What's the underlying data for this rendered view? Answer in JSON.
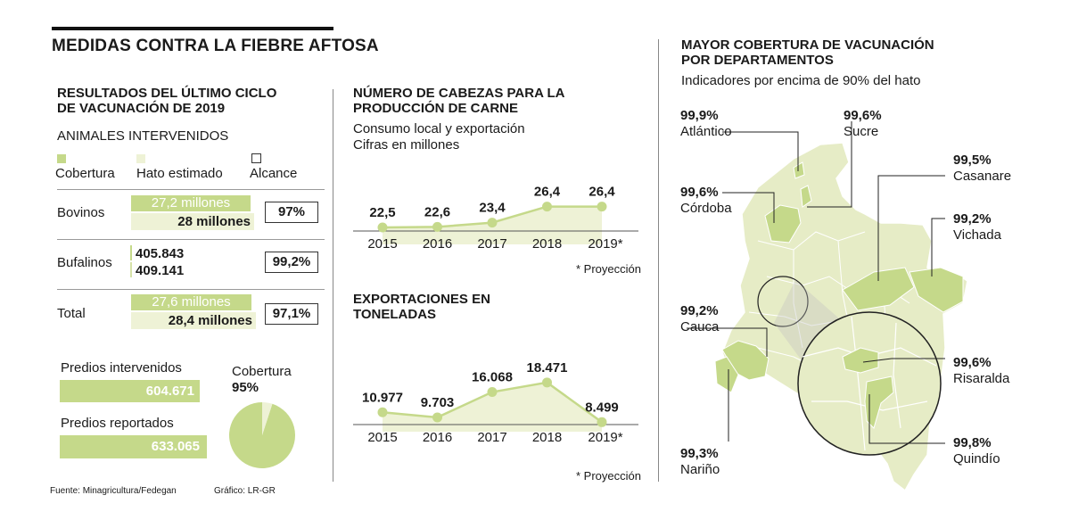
{
  "header": {
    "title": "MEDIDAS CONTRA LA FIEBRE AFTOSA"
  },
  "colors": {
    "cobertura": "#c5d98a",
    "hato": "#eef2d6",
    "line": "#c5d98a",
    "area": "#eef2d6",
    "map_fill": "#e6ecc6",
    "map_highlight": "#c5d98a"
  },
  "left": {
    "title": "RESULTADOS DEL ÚLTIMO CICLO DE VACUNACIÓN DE 2019",
    "subtitle": "ANIMALES INTERVENIDOS",
    "legend": {
      "cobertura": "Cobertura",
      "hato": "Hato estimado",
      "alcance": "Alcance"
    },
    "rows": [
      {
        "label": "Bovinos",
        "cobertura": "27,2 millones",
        "hato": "28 millones",
        "alcance": "97%"
      },
      {
        "label": "Bufalinos",
        "cobertura": "405.843",
        "hato": "409.141",
        "alcance": "99,2%"
      },
      {
        "label": "Total",
        "cobertura": "27,6 millones",
        "hato": "28,4 millones",
        "alcance": "97,1%"
      }
    ],
    "predios_intervenidos_label": "Predios intervenidos",
    "predios_intervenidos_value": "604.671",
    "predios_reportados_label": "Predios reportados",
    "predios_reportados_value": "633.065",
    "cobertura_label": "Cobertura",
    "cobertura_value": "95%"
  },
  "footer": {
    "fuente": "Fuente: Minagricultura/Fedegan",
    "grafico": "Gráfico: LR-GR"
  },
  "chart_data": [
    {
      "type": "area",
      "title": "NÚMERO DE CABEZAS PARA LA PRODUCCIÓN DE CARNE",
      "subtitle": "Consumo local y exportación Cifras en millones",
      "categories": [
        "2015",
        "2016",
        "2017",
        "2018",
        "2019*"
      ],
      "values": [
        22.5,
        22.6,
        23.4,
        26.4,
        26.4
      ],
      "labels": [
        "22,5",
        "22,6",
        "23,4",
        "26,4",
        "26,4"
      ],
      "note": "* Proyección",
      "ylim": [
        20,
        30
      ]
    },
    {
      "type": "area",
      "title": "EXPORTACIONES EN TONELADAS",
      "categories": [
        "2015",
        "2016",
        "2017",
        "2018",
        "2019*"
      ],
      "values": [
        10977,
        9703,
        16068,
        18471,
        8499
      ],
      "labels": [
        "10.977",
        "9.703",
        "16.068",
        "18.471",
        "8.499"
      ],
      "note": "* Proyección",
      "ylim": [
        7000,
        20000
      ]
    },
    {
      "type": "pie",
      "title": "Cobertura",
      "values": [
        95,
        5
      ],
      "labels": [
        "95%",
        ""
      ]
    }
  ],
  "map": {
    "title": "MAYOR COBERTURA DE VACUNACIÓN POR DEPARTAMENTOS",
    "subtitle": "Indicadores por encima de 90% del hato",
    "departments": [
      {
        "name": "Atlántico",
        "value": "99,9%"
      },
      {
        "name": "Sucre",
        "value": "99,6%"
      },
      {
        "name": "Córdoba",
        "value": "99,6%"
      },
      {
        "name": "Casanare",
        "value": "99,5%"
      },
      {
        "name": "Vichada",
        "value": "99,2%"
      },
      {
        "name": "Cauca",
        "value": "99,2%"
      },
      {
        "name": "Risaralda",
        "value": "99,6%"
      },
      {
        "name": "Nariño",
        "value": "99,3%"
      },
      {
        "name": "Quindío",
        "value": "99,8%"
      }
    ]
  }
}
